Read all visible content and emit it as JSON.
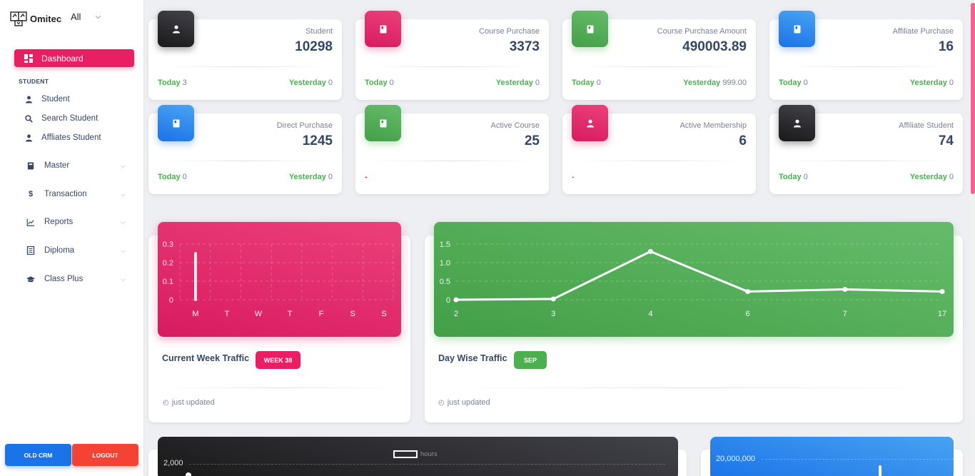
{
  "sidebar": {
    "brand": "Omitec",
    "selector_value": "All",
    "dashboard_label": "Dashboard",
    "section_student": "STUDENT",
    "student_items": [
      {
        "label": "Student",
        "icon": "person-icon"
      },
      {
        "label": "Search Student",
        "icon": "search-icon"
      },
      {
        "label": "Affliates Student",
        "icon": "person-icon"
      }
    ],
    "groups": [
      {
        "label": "Master",
        "icon": "book-icon"
      },
      {
        "label": "Transaction",
        "icon": "dollar-icon"
      },
      {
        "label": "Reports",
        "icon": "chart-icon"
      },
      {
        "label": "Diploma",
        "icon": "document-icon"
      },
      {
        "label": "Class Plus",
        "icon": "graduation-cap-icon"
      }
    ],
    "old_crm_label": "OLD CRM",
    "logout_label": "LOGOUT"
  },
  "stats": [
    {
      "label": "Student",
      "value": "10298",
      "today_label": "Today",
      "today": "3",
      "yesterday_label": "Yesterday",
      "yesterday": "0",
      "icon": "person-icon",
      "color": "#191919"
    },
    {
      "label": "Course Purchase",
      "value": "3373",
      "today_label": "Today",
      "today": "0",
      "yesterday_label": "Yesterday",
      "yesterday": "0",
      "icon": "book-icon",
      "color": "#d81b60"
    },
    {
      "label": "Course Purchase Amount",
      "value": "490003.89",
      "today_label": "Today",
      "today": "0",
      "yesterday_label": "Yesterday",
      "yesterday": "999.00",
      "icon": "book-icon",
      "color": "#43a047"
    },
    {
      "label": "Affiliate Purchase",
      "value": "16",
      "today_label": "Today",
      "today": "0",
      "yesterday_label": "Yesterday",
      "yesterday": "0",
      "icon": "book-icon",
      "color": "#1a73e8"
    },
    {
      "label": "Direct Purchase",
      "value": "1245",
      "today_label": "Today",
      "today": "0",
      "yesterday_label": "Yesterday",
      "yesterday": "0",
      "icon": "book-icon",
      "color": "#1a73e8"
    },
    {
      "label": "Active Course",
      "value": "25",
      "dash": "-",
      "icon": "book-icon",
      "color": "#43a047"
    },
    {
      "label": "Active Membership",
      "value": "6",
      "dash": "-",
      "icon": "person-icon",
      "color": "#d81b60"
    },
    {
      "label": "Affiliate Student",
      "value": "74",
      "today_label": "Today",
      "today": "0",
      "yesterday_label": "Yesterday",
      "yesterday": "0",
      "icon": "person-icon",
      "color": "#191919"
    }
  ],
  "week_chart": {
    "title": "Current Week Traffic",
    "badge": "WEEK 38",
    "updated": "just updated"
  },
  "day_chart": {
    "title": "Day Wise Traffic",
    "badge": "SEP",
    "updated": "just updated"
  },
  "bottom_left_chart": {
    "legend": "hours",
    "y_top_label": "2,000"
  },
  "bottom_right_chart": {
    "y_top_label": "20,000,000"
  },
  "chart_data": [
    {
      "type": "bar",
      "categories": [
        "M",
        "T",
        "W",
        "T",
        "F",
        "S",
        "S"
      ],
      "values": [
        0.25,
        0,
        0,
        0,
        0,
        0,
        0
      ],
      "yticks": [
        "0",
        "0.1",
        "0.2",
        "0.3"
      ],
      "ylim": [
        0,
        0.3
      ],
      "grid": true
    },
    {
      "type": "line",
      "x": [
        "2",
        "3",
        "4",
        "6",
        "7",
        "17"
      ],
      "values": [
        0,
        0.02,
        1.3,
        0.22,
        0.28,
        0.22
      ],
      "yticks": [
        "0",
        "0.5",
        "1.0",
        "1.5"
      ],
      "ylim": [
        0,
        1.5
      ],
      "grid": true
    }
  ]
}
